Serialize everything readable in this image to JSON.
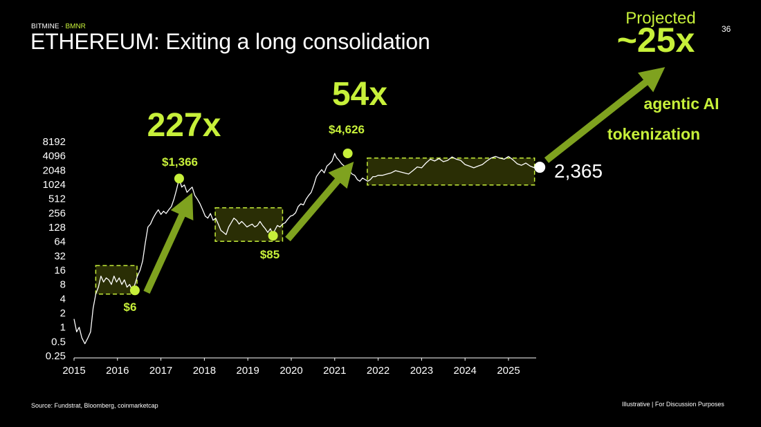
{
  "header": {
    "brand_prefix": "BITMINE · ",
    "brand_ticker": "BMNR",
    "title": "ETHEREUM: Exiting a long consolidation",
    "page_number": "36"
  },
  "footer": {
    "source": "Source: Fundstrat, Bloomberg, coinmarketcap",
    "note": "Illustrative  |  For Discussion Purposes"
  },
  "colors": {
    "accent": "#c7f03a",
    "arrow": "#7fa21f",
    "box_fill": "#2f3306",
    "line": "#ffffff",
    "background": "#000000"
  },
  "chart_data": {
    "type": "line",
    "title": "",
    "xlabel": "",
    "ylabel": "",
    "y_scale": "log2",
    "ylim": [
      0.25,
      8192
    ],
    "xlim": [
      2015,
      2025.7
    ],
    "x_ticks": [
      "2015",
      "2016",
      "2017",
      "2018",
      "2019",
      "2020",
      "2021",
      "2022",
      "2023",
      "2024",
      "2025"
    ],
    "y_ticks": [
      "0.25",
      "0.5",
      "1",
      "2",
      "4",
      "8",
      "16",
      "32",
      "64",
      "128",
      "256",
      "512",
      "1024",
      "2048",
      "4096",
      "8192"
    ],
    "series": [
      {
        "points": [
          [
            2015.0,
            1.5
          ],
          [
            2015.06,
            0.8
          ],
          [
            2015.12,
            1.0
          ],
          [
            2015.18,
            0.6
          ],
          [
            2015.25,
            0.45
          ],
          [
            2015.32,
            0.6
          ],
          [
            2015.38,
            0.8
          ],
          [
            2015.44,
            2.5
          ],
          [
            2015.5,
            5
          ],
          [
            2015.56,
            7
          ],
          [
            2015.62,
            12
          ],
          [
            2015.68,
            9
          ],
          [
            2015.74,
            11
          ],
          [
            2015.8,
            10
          ],
          [
            2015.86,
            8
          ],
          [
            2015.92,
            12
          ],
          [
            2015.98,
            9
          ],
          [
            2016.04,
            11
          ],
          [
            2016.1,
            8
          ],
          [
            2016.16,
            10
          ],
          [
            2016.22,
            7
          ],
          [
            2016.28,
            8
          ],
          [
            2016.34,
            6
          ],
          [
            2016.4,
            8
          ],
          [
            2016.46,
            12
          ],
          [
            2016.52,
            16
          ],
          [
            2016.58,
            25
          ],
          [
            2016.64,
            60
          ],
          [
            2016.7,
            130
          ],
          [
            2016.76,
            150
          ],
          [
            2016.82,
            200
          ],
          [
            2016.88,
            250
          ],
          [
            2016.94,
            300
          ],
          [
            2017.0,
            240
          ],
          [
            2017.06,
            280
          ],
          [
            2017.12,
            250
          ],
          [
            2017.18,
            300
          ],
          [
            2017.24,
            350
          ],
          [
            2017.3,
            500
          ],
          [
            2017.36,
            800
          ],
          [
            2017.42,
            1366
          ],
          [
            2017.48,
            900
          ],
          [
            2017.54,
            1000
          ],
          [
            2017.6,
            700
          ],
          [
            2017.66,
            800
          ],
          [
            2017.72,
            900
          ],
          [
            2017.78,
            600
          ],
          [
            2017.84,
            500
          ],
          [
            2017.9,
            400
          ],
          [
            2017.96,
            300
          ],
          [
            2018.02,
            220
          ],
          [
            2018.08,
            200
          ],
          [
            2018.14,
            250
          ],
          [
            2018.2,
            180
          ],
          [
            2018.26,
            200
          ],
          [
            2018.32,
            150
          ],
          [
            2018.38,
            110
          ],
          [
            2018.44,
            100
          ],
          [
            2018.5,
            90
          ],
          [
            2018.56,
            130
          ],
          [
            2018.62,
            160
          ],
          [
            2018.68,
            200
          ],
          [
            2018.74,
            180
          ],
          [
            2018.8,
            150
          ],
          [
            2018.86,
            170
          ],
          [
            2018.92,
            150
          ],
          [
            2018.98,
            130
          ],
          [
            2019.04,
            140
          ],
          [
            2019.1,
            150
          ],
          [
            2019.16,
            130
          ],
          [
            2019.22,
            140
          ],
          [
            2019.28,
            170
          ],
          [
            2019.34,
            140
          ],
          [
            2019.4,
            120
          ],
          [
            2019.46,
            100
          ],
          [
            2019.52,
            120
          ],
          [
            2019.58,
            85
          ],
          [
            2019.62,
            110
          ],
          [
            2019.68,
            140
          ],
          [
            2019.74,
            130
          ],
          [
            2019.8,
            150
          ],
          [
            2019.86,
            160
          ],
          [
            2019.92,
            190
          ],
          [
            2019.98,
            220
          ],
          [
            2020.04,
            230
          ],
          [
            2020.1,
            260
          ],
          [
            2020.16,
            350
          ],
          [
            2020.22,
            400
          ],
          [
            2020.28,
            380
          ],
          [
            2020.34,
            500
          ],
          [
            2020.4,
            600
          ],
          [
            2020.46,
            700
          ],
          [
            2020.52,
            1000
          ],
          [
            2020.58,
            1500
          ],
          [
            2020.64,
            1800
          ],
          [
            2020.7,
            2100
          ],
          [
            2020.76,
            1800
          ],
          [
            2020.82,
            2500
          ],
          [
            2020.88,
            2800
          ],
          [
            2020.94,
            3200
          ],
          [
            2021.0,
            4626
          ],
          [
            2021.04,
            3800
          ],
          [
            2021.1,
            3300
          ],
          [
            2021.16,
            2800
          ],
          [
            2021.22,
            2500
          ],
          [
            2021.28,
            2200
          ],
          [
            2021.34,
            2000
          ],
          [
            2021.4,
            1700
          ],
          [
            2021.46,
            1600
          ],
          [
            2021.52,
            1300
          ],
          [
            2021.58,
            1200
          ],
          [
            2021.64,
            1400
          ],
          [
            2021.7,
            1300
          ],
          [
            2021.76,
            1200
          ],
          [
            2021.82,
            1300
          ],
          [
            2021.88,
            1500
          ],
          [
            2021.94,
            1500
          ],
          [
            2022.0,
            1600
          ],
          [
            2022.1,
            1600
          ],
          [
            2022.2,
            1700
          ],
          [
            2022.3,
            1800
          ],
          [
            2022.4,
            2000
          ],
          [
            2022.5,
            1900
          ],
          [
            2022.6,
            1800
          ],
          [
            2022.7,
            1700
          ],
          [
            2022.8,
            2000
          ],
          [
            2022.9,
            2400
          ],
          [
            2023.0,
            2300
          ],
          [
            2023.1,
            2900
          ],
          [
            2023.2,
            3500
          ],
          [
            2023.3,
            3200
          ],
          [
            2023.4,
            3600
          ],
          [
            2023.5,
            3100
          ],
          [
            2023.6,
            3300
          ],
          [
            2023.7,
            3900
          ],
          [
            2023.8,
            3500
          ],
          [
            2023.9,
            3300
          ],
          [
            2024.0,
            2700
          ],
          [
            2024.1,
            2500
          ],
          [
            2024.2,
            2300
          ],
          [
            2024.3,
            2500
          ],
          [
            2024.4,
            2700
          ],
          [
            2024.5,
            3200
          ],
          [
            2024.6,
            3700
          ],
          [
            2024.7,
            4000
          ],
          [
            2024.8,
            3700
          ],
          [
            2024.9,
            3500
          ],
          [
            2025.0,
            4000
          ],
          [
            2025.1,
            3400
          ],
          [
            2025.2,
            2800
          ],
          [
            2025.3,
            2600
          ],
          [
            2025.4,
            2900
          ],
          [
            2025.5,
            2500
          ],
          [
            2025.6,
            2300
          ],
          [
            2025.66,
            2365
          ]
        ]
      }
    ],
    "consolidation_boxes": [
      {
        "x": [
          2015.5,
          2016.45
        ],
        "y": [
          5,
          20
        ]
      },
      {
        "x": [
          2018.25,
          2019.8
        ],
        "y": [
          65,
          330
        ]
      },
      {
        "x": [
          2021.75,
          2025.6
        ],
        "y": [
          1000,
          3700
        ]
      }
    ],
    "annotations": {
      "points": [
        {
          "x": 2016.4,
          "y": 6,
          "label": "$6"
        },
        {
          "x": 2017.42,
          "y": 1366,
          "label": "$1,366"
        },
        {
          "x": 2019.58,
          "y": 85,
          "label": "$85"
        },
        {
          "x": 2021.3,
          "y": 4626,
          "label": "$4,626"
        }
      ],
      "current": {
        "x": 2025.72,
        "y": 2365,
        "label": "2,365"
      },
      "multiples": [
        "227x",
        "54x"
      ],
      "projection": {
        "prefix": "Projected",
        "value": "~25x"
      },
      "drivers": [
        "agentic AI",
        "tokenization"
      ]
    }
  }
}
